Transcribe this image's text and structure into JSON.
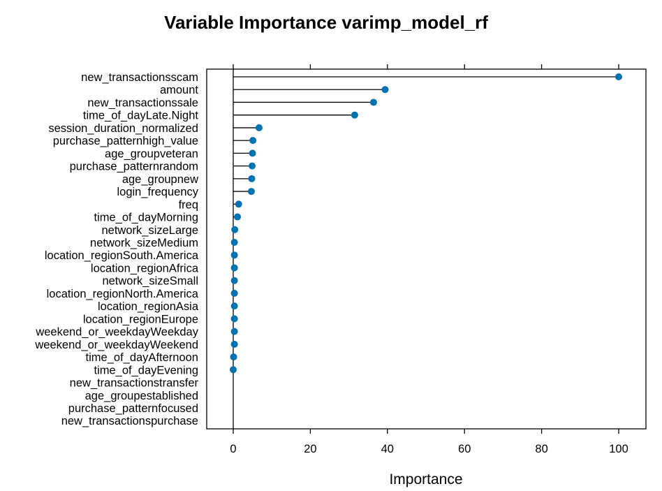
{
  "chart_data": {
    "type": "dot",
    "title": "Variable Importance varimp_model_rf",
    "xlabel": "Importance",
    "ylabel": "",
    "xlim": [
      -7,
      107
    ],
    "xticks": [
      0,
      20,
      40,
      60,
      80,
      100
    ],
    "xtick_labels": [
      "0",
      "20",
      "40",
      "60",
      "80",
      "100"
    ],
    "grid": false,
    "point_color": "#0072B2",
    "categories": [
      "new_transactionsscam",
      "amount",
      "new_transactionssale",
      "time_of_dayLate.Night",
      "session_duration_normalized",
      "purchase_patternhigh_value",
      "age_groupveteran",
      "purchase_patternrandom",
      "age_groupnew",
      "login_frequency",
      "freq",
      "time_of_dayMorning",
      "network_sizeLarge",
      "network_sizeMedium",
      "location_regionSouth.America",
      "location_regionAfrica",
      "network_sizeSmall",
      "location_regionNorth.America",
      "location_regionAsia",
      "location_regionEurope",
      "weekend_or_weekdayWeekday",
      "weekend_or_weekdayWeekend",
      "time_of_dayAfternoon",
      "time_of_dayEvening",
      "new_transactionstransfer",
      "age_groupestablished",
      "purchase_patternfocused",
      "new_transactionspurchase"
    ],
    "values": [
      100,
      39.4,
      36.4,
      31.5,
      6.7,
      5.1,
      5.0,
      4.9,
      4.8,
      4.7,
      1.4,
      1.1,
      0.4,
      0.3,
      0.3,
      0.3,
      0.3,
      0.3,
      0.3,
      0.3,
      0.3,
      0.3,
      0.1,
      0.0,
      null,
      null,
      null,
      null
    ]
  }
}
